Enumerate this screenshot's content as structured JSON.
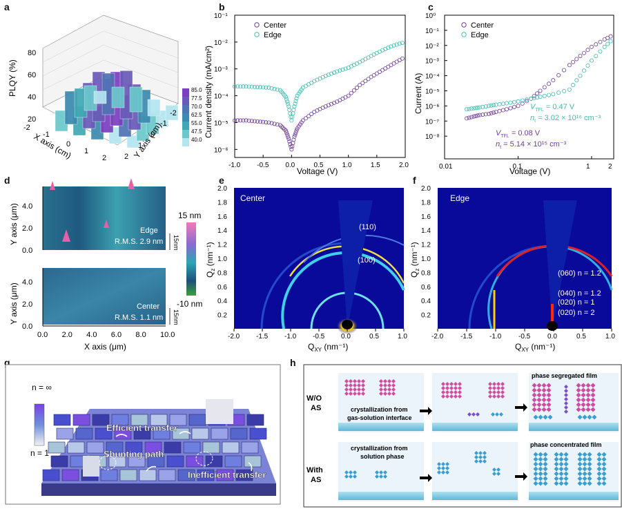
{
  "panel_letters": [
    "a",
    "b",
    "c",
    "d",
    "e",
    "f",
    "g",
    "h"
  ],
  "colors": {
    "center": "#6d3d9c",
    "edge": "#3dbfb0",
    "gixd_bg": "#0a0a9a",
    "afm_low": "#1f6f8a",
    "afm_high": "#e85fa8"
  },
  "panel_a": {
    "zlabel": "PLQY (%)",
    "xlabel": "X axis (cm)",
    "ylabel": "Y axis (cm)",
    "x_ticks": [
      "-2",
      "-1",
      "0",
      "1",
      "2"
    ],
    "y_ticks": [
      "2",
      "1",
      "0",
      "-1",
      "-2"
    ],
    "z_ticks": [
      "20",
      "40",
      "60",
      "80"
    ],
    "colorbar_ticks": [
      "85.0",
      "77.5",
      "70.0",
      "62.5",
      "55.0",
      "47.5",
      "40.0"
    ],
    "colorbar_colors": [
      "#7c3fbf",
      "#6a5ab8",
      "#4f74b3",
      "#3c8aaf",
      "#40a8b4",
      "#6ac8cc",
      "#b4e6f0"
    ]
  },
  "panel_d": {
    "ylabel": "Y axis (μm)",
    "xlabel": "X axis (μm)",
    "x_ticks": [
      "0.0",
      "2.0",
      "4.0",
      "6.0",
      "8.0",
      "10.0"
    ],
    "y_ticks": [
      "0.0",
      "2.0",
      "4.0"
    ],
    "scale_top": "15 nm",
    "scale_bottom": "-10 nm",
    "edge_label": "Edge",
    "edge_rms": "R.M.S. 2.9 nm",
    "center_label": "Center",
    "center_rms": "R.M.S. 1.1 nm",
    "zbar": "15nm"
  },
  "panel_e": {
    "title": "Center",
    "xlabel": "Q",
    "xlabel_sub": "XY",
    "xlabel_unit": " (nm⁻¹)",
    "ylabel": "Q",
    "ylabel_sub": "z",
    "ylabel_unit": " (nm⁻¹)",
    "x_ticks": [
      "-2.0",
      "-1.5",
      "-1.0",
      "-0.5",
      "0.0",
      "0.5",
      "1.0"
    ],
    "y_ticks": [
      "0.2",
      "0.4",
      "0.6",
      "0.8",
      "1.0",
      "1.2",
      "1.4",
      "1.6",
      "1.8",
      "2.0"
    ],
    "annotations": [
      "(110)",
      "(100)"
    ]
  },
  "panel_f": {
    "title": "Edge",
    "annotations": [
      "(060) n = 1.2",
      "(040) n = 1.2",
      "(020) n = 1",
      "(020) n = 2"
    ]
  },
  "panel_g": {
    "legend_top": "n = ∞",
    "legend_bottom": "n = 1",
    "labels": [
      "Efficient transfer",
      "Shunting path",
      "Inefficient transfer"
    ]
  },
  "panel_h": {
    "row1_label_1": "W/O",
    "row1_label_2": "AS",
    "row1_text_1": "crystallization from",
    "row1_text_2": "gas-solution interface",
    "row1_result": "phase segregated film",
    "row2_label_1": "With",
    "row2_label_2": "AS",
    "row2_text_1": "crystallization from",
    "row2_text_2": "solution phase",
    "row2_result": "phase concentrated film"
  },
  "chart_data": [
    {
      "panel": "b",
      "type": "scatter",
      "xlabel": "Voltage (V)",
      "ylabel": "Current density (mA/cm²)",
      "xlim": [
        -1.0,
        2.0
      ],
      "ylim_log10": [
        -6.3,
        -1
      ],
      "y_scale": "log",
      "x_ticks": [
        "-1.0",
        "-0.5",
        "0.0",
        "0.5",
        "1.0",
        "1.5",
        "2.0"
      ],
      "y_ticks": [
        "10⁻⁶",
        "10⁻⁵",
        "10⁻⁴",
        "10⁻³",
        "10⁻²",
        "10⁻¹"
      ],
      "legend_position": "top-left",
      "series": [
        {
          "name": "Center",
          "x": [
            -1.0,
            -0.8,
            -0.6,
            -0.4,
            -0.2,
            -0.1,
            -0.05,
            0.0,
            0.05,
            0.1,
            0.2,
            0.4,
            0.6,
            0.8,
            1.0,
            1.2,
            1.4,
            1.6,
            1.8,
            2.0
          ],
          "y": [
            1.2e-05,
            1.2e-05,
            1.1e-05,
            1e-05,
            8e-06,
            5e-06,
            2.5e-06,
            1e-06,
            3e-06,
            6e-06,
            1.2e-05,
            2.5e-05,
            4e-05,
            6e-05,
            0.0001,
            0.00025,
            0.0005,
            0.0009,
            0.0016,
            0.0028
          ]
        },
        {
          "name": "Edge",
          "x": [
            -1.0,
            -0.8,
            -0.6,
            -0.4,
            -0.2,
            -0.1,
            -0.05,
            0.0,
            0.05,
            0.1,
            0.2,
            0.4,
            0.6,
            0.8,
            1.0,
            1.2,
            1.4,
            1.6,
            1.8,
            2.0
          ],
          "y": [
            0.00022,
            0.00022,
            0.00021,
            0.0002,
            0.00016,
            9e-05,
            4e-05,
            1.2e-05,
            4e-05,
            0.0001,
            0.0002,
            0.00035,
            0.00055,
            0.0008,
            0.0011,
            0.0018,
            0.003,
            0.005,
            0.0075,
            0.01
          ]
        }
      ]
    },
    {
      "panel": "c",
      "type": "scatter",
      "xlabel": "Voltage (V)",
      "ylabel": "Current (A)",
      "x_scale": "log",
      "y_scale": "log",
      "xlim": [
        0.01,
        2
      ],
      "ylim_log10": [
        -9.5,
        0
      ],
      "x_ticks": [
        "0.01",
        "0.1",
        "1",
        "2"
      ],
      "y_ticks": [
        "10⁰",
        "10⁻¹",
        "10⁻²",
        "10⁻³",
        "10⁻⁴",
        "10⁻⁵",
        "10⁻⁶",
        "10⁻⁷",
        "10⁻⁸"
      ],
      "legend_position": "top-left",
      "annotations": {
        "edge_vtfl": "V",
        "edge_vtfl_sub": "TFL",
        "edge_vtfl_value": " = 0.47 V",
        "edge_nt": "n",
        "edge_nt_sub": "t",
        "edge_nt_value": " = 3.02 × 10¹⁶ cm⁻³",
        "center_vtfl": "V",
        "center_vtfl_sub": "TFL",
        "center_vtfl_value": " = 0.08 V",
        "center_nt": "n",
        "center_nt_sub": "t",
        "center_nt_value": " = 5.14 × 10¹⁵ cm⁻³"
      },
      "series": [
        {
          "name": "Center",
          "x": [
            0.02,
            0.025,
            0.03,
            0.04,
            0.05,
            0.07,
            0.1,
            0.15,
            0.2,
            0.3,
            0.5,
            0.7,
            1.0,
            1.5,
            2.0
          ],
          "y": [
            1.5e-07,
            2e-07,
            2.5e-07,
            3e-07,
            4e-07,
            6e-07,
            1e-06,
            3e-06,
            1e-05,
            5e-05,
            0.0005,
            0.002,
            0.008,
            0.025,
            0.05
          ]
        },
        {
          "name": "Edge",
          "x": [
            0.02,
            0.025,
            0.03,
            0.04,
            0.05,
            0.07,
            0.1,
            0.15,
            0.2,
            0.3,
            0.5,
            0.7,
            1.0,
            1.5,
            2.0
          ],
          "y": [
            6e-07,
            7e-07,
            8e-07,
            1e-06,
            1.2e-06,
            1.5e-06,
            2e-06,
            3e-06,
            4e-06,
            6e-06,
            1.2e-05,
            0.0001,
            0.001,
            0.008,
            0.03
          ]
        }
      ]
    }
  ]
}
